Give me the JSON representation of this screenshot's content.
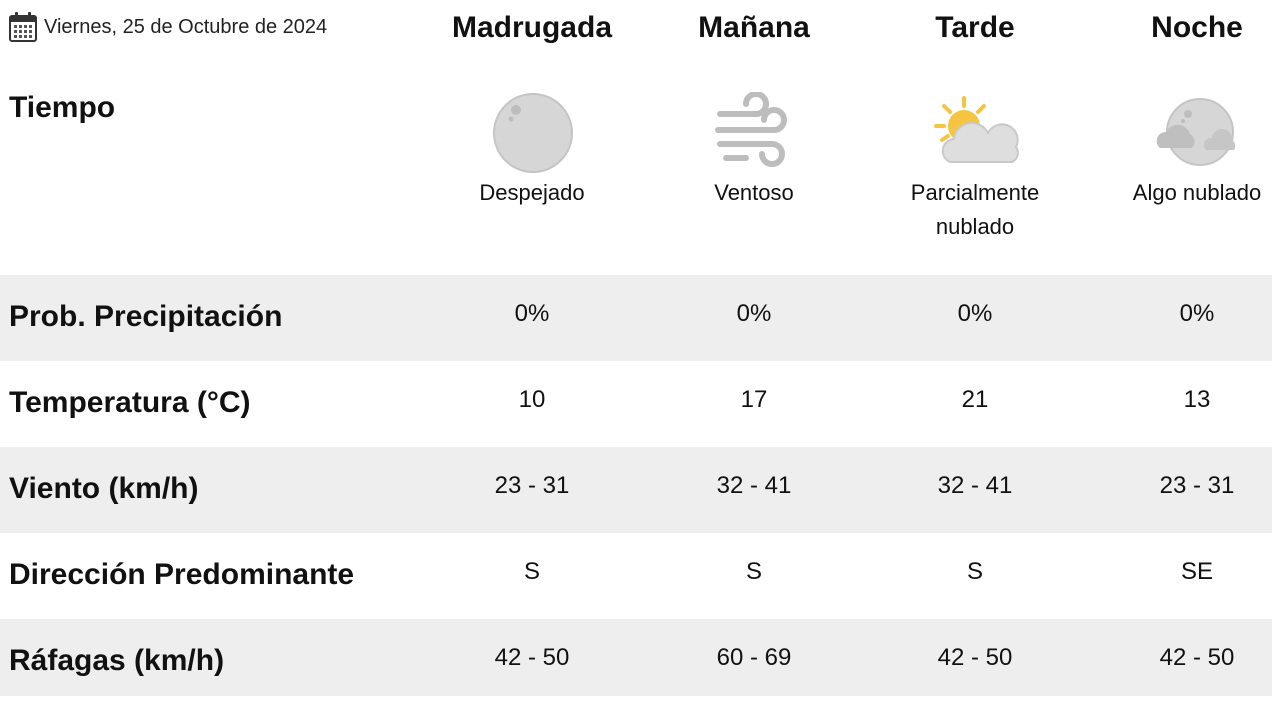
{
  "date": {
    "text": "Viernes, 25 de Octubre de 2024",
    "icon": "calendar-icon"
  },
  "periods": [
    "Madrugada",
    "Mañana",
    "Tarde",
    "Noche"
  ],
  "weather": {
    "label": "Tiempo",
    "conditions": [
      {
        "icon": "clear-night-icon",
        "line1": "Despejado",
        "line2": ""
      },
      {
        "icon": "wind-icon",
        "line1": "Ventoso",
        "line2": ""
      },
      {
        "icon": "partly-cloudy-day-icon",
        "line1": "Parcialmente",
        "line2": "nublado"
      },
      {
        "icon": "partly-cloudy-night-icon",
        "line1": "Algo nublado",
        "line2": ""
      }
    ]
  },
  "rows": [
    {
      "label": "Prob. Precipitación",
      "values": [
        "0%",
        "0%",
        "0%",
        "0%"
      ]
    },
    {
      "label": "Temperatura (°C)",
      "values": [
        "10",
        "17",
        "21",
        "13"
      ]
    },
    {
      "label": "Viento (km/h)",
      "values": [
        "23 - 31",
        "32 - 41",
        "32 - 41",
        "23 - 31"
      ]
    },
    {
      "label": "Dirección Predominante",
      "values": [
        "S",
        "S",
        "S",
        "SE"
      ]
    },
    {
      "label": "Ráfagas (km/h)",
      "values": [
        "42 - 50",
        "60 - 69",
        "42 - 50",
        "42 - 50"
      ]
    }
  ],
  "colors": {
    "row_shade": "#eeeeee",
    "sun": "#f5c542",
    "cloud": "#d9d9d9",
    "moon": "#cfcfcf"
  }
}
